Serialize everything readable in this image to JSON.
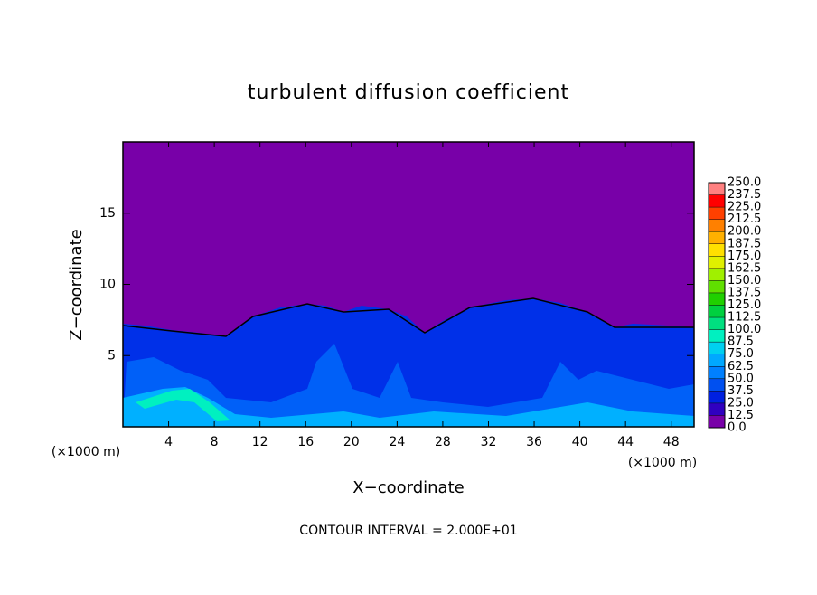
{
  "chart_data": {
    "type": "contour",
    "title": "turbulent diffusion coefficient",
    "x_label": "X−coordinate",
    "y_label": "Z−coordinate",
    "x_unit_left": "(×1000 m)",
    "x_unit_right": "(×1000 m)",
    "note": "CONTOUR INTERVAL = 2.000E+01",
    "xlim": [
      0,
      50
    ],
    "xticks": [
      4,
      8,
      12,
      16,
      20,
      24,
      28,
      32,
      36,
      40,
      44,
      48
    ],
    "ylim": [
      0,
      20
    ],
    "yticks": [
      5,
      10,
      15
    ],
    "colorbar": {
      "levels": [
        {
          "value": 0,
          "label": "0.0"
        },
        12.5,
        {
          "value": 25,
          "label": "25.0"
        },
        37.5,
        {
          "value": 50,
          "label": "50.0"
        },
        62.5,
        {
          "value": 75,
          "label": "75.0"
        },
        87.5,
        {
          "value": 100,
          "label": "100.0"
        },
        112.5,
        {
          "value": 125,
          "label": "125.0"
        },
        137.5,
        {
          "value": 150,
          "label": "150.0"
        },
        162.5,
        {
          "value": 175,
          "label": "175.0"
        },
        187.5,
        {
          "value": 200,
          "label": "200.0"
        },
        212.5,
        {
          "value": 225,
          "label": "225.0"
        },
        237.5,
        {
          "value": 250,
          "label": "250.0"
        }
      ],
      "colors": [
        "#7800a8",
        "#3000c0",
        "#0020e0",
        "#0050f0",
        "#0080ff",
        "#00a8ff",
        "#00d0f0",
        "#00f0c0",
        "#00e080",
        "#00d040",
        "#20d000",
        "#60e000",
        "#a0f000",
        "#e0f000",
        "#ffe000",
        "#ffb000",
        "#ff8000",
        "#ff4000",
        "#ff0000",
        "#ff8080"
      ]
    }
  }
}
